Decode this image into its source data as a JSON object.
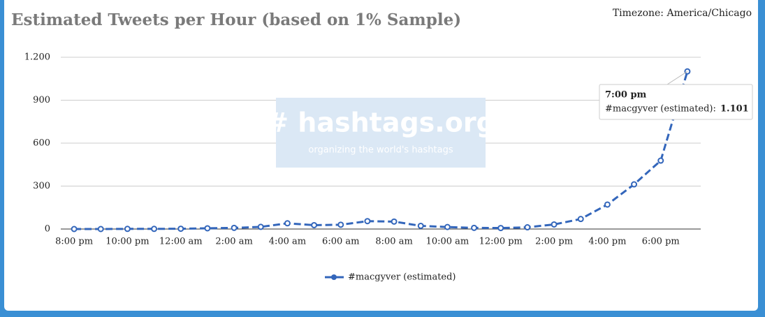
{
  "chart_data": {
    "type": "line",
    "title": "Estimated Tweets per Hour (based on 1% Sample)",
    "timezone": "Timezone: America/Chicago",
    "watermark": {
      "title": "# hashtags.org",
      "subtitle": "organizing the world's hashtags"
    },
    "categories": [
      "8:00 pm",
      null,
      "10:00 pm",
      null,
      "12:00 am",
      null,
      "2:00 am",
      null,
      "4:00 am",
      null,
      "6:00 am",
      null,
      "8:00 am",
      null,
      "10:00 am",
      null,
      "12:00 pm",
      null,
      "2:00 pm",
      null,
      "4:00 pm",
      null,
      "6:00 pm",
      null
    ],
    "series": [
      {
        "name": "#macgyver (estimated)",
        "color": "#3366bb",
        "values": [
          0,
          0,
          1,
          1,
          2,
          5,
          8,
          15,
          40,
          27,
          30,
          55,
          52,
          22,
          14,
          8,
          7,
          12,
          32,
          70,
          171,
          312,
          478,
          1101
        ]
      }
    ],
    "ylim": [
      0,
      1200
    ],
    "yticks": [
      0,
      300,
      600,
      900,
      {
        "value": 1200,
        "label": "1.200"
      }
    ],
    "grid": true,
    "legend": "bottom",
    "tooltip": {
      "title": "7:00 pm",
      "text": "#macgyver (estimated):",
      "value_label": "1.101"
    }
  }
}
